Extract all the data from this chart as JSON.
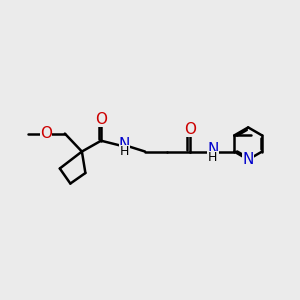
{
  "bg_color": "#ebebeb",
  "atom_colors": {
    "N": "#0000cc",
    "O": "#cc0000",
    "H": "#000000",
    "C": "#000000"
  },
  "bond_color": "#000000",
  "bond_width": 1.8,
  "font_size": 10,
  "font_size_small": 8
}
